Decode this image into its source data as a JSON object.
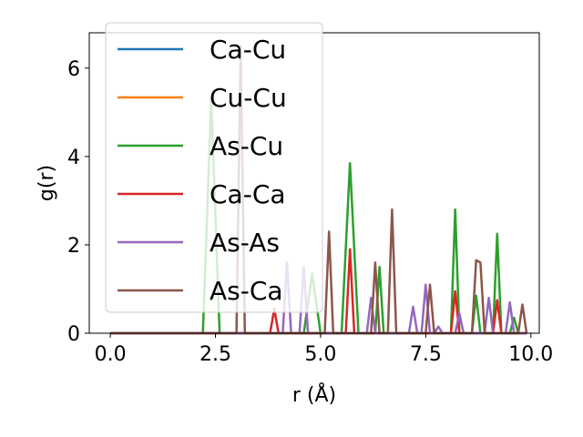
{
  "chart_data": {
    "type": "line",
    "xlabel": "r (Å)",
    "ylabel": "g(r)",
    "xlim": [
      -0.5,
      10.2
    ],
    "ylim": [
      0,
      6.8
    ],
    "x_ticks": [
      {
        "value": 0.0,
        "label": "0.0"
      },
      {
        "value": 2.5,
        "label": "2.5"
      },
      {
        "value": 5.0,
        "label": "5.0"
      },
      {
        "value": 7.5,
        "label": "7.5"
      },
      {
        "value": 10.0,
        "label": "10.0"
      }
    ],
    "y_ticks": [
      {
        "value": 0,
        "label": "0"
      },
      {
        "value": 2,
        "label": "2"
      },
      {
        "value": 4,
        "label": "4"
      },
      {
        "value": 6,
        "label": "6"
      }
    ],
    "grid": false,
    "legend_position": "top-left",
    "series": [
      {
        "name": "Ca-Cu",
        "color": "#1f77b4",
        "x": [
          0.0,
          9.9
        ],
        "y": [
          0,
          0
        ]
      },
      {
        "name": "Cu-Cu",
        "color": "#ff7f0e",
        "x": [
          0.0,
          9.9
        ],
        "y": [
          0,
          0
        ]
      },
      {
        "name": "As-Cu",
        "color": "#2ca02c",
        "x": [
          0.0,
          2.2,
          2.4,
          2.6,
          4.6,
          4.8,
          5.0,
          5.5,
          5.7,
          5.9,
          6.3,
          6.4,
          6.5,
          8.1,
          8.2,
          8.3,
          8.6,
          8.7,
          8.8,
          9.1,
          9.2,
          9.3,
          9.5,
          9.6,
          9.7,
          9.9
        ],
        "y": [
          0,
          0,
          5.3,
          0,
          0,
          1.35,
          0,
          0,
          3.85,
          0,
          0,
          1.5,
          0,
          0,
          2.8,
          0,
          0,
          0.85,
          0,
          0,
          2.25,
          0,
          0,
          0.35,
          0,
          0
        ]
      },
      {
        "name": "Ca-Ca",
        "color": "#d62728",
        "x": [
          0.0,
          3.8,
          3.9,
          4.0,
          5.6,
          5.7,
          5.8,
          8.1,
          8.2,
          8.3,
          9.1,
          9.2,
          9.3,
          9.9
        ],
        "y": [
          0,
          0,
          0.55,
          0,
          0,
          1.9,
          0,
          0,
          0.95,
          0,
          0,
          0.75,
          0,
          0
        ]
      },
      {
        "name": "As-As",
        "color": "#9467bd",
        "x": [
          0.0,
          4.1,
          4.2,
          4.3,
          4.5,
          4.6,
          4.7,
          6.1,
          6.2,
          6.3,
          7.1,
          7.2,
          7.3,
          7.4,
          7.5,
          7.6,
          7.7,
          7.8,
          7.9,
          8.2,
          8.3,
          8.4,
          8.9,
          9.0,
          9.1,
          9.4,
          9.5,
          9.6,
          9.9
        ],
        "y": [
          0,
          0,
          1.6,
          0,
          0,
          1.5,
          0,
          0,
          0.8,
          0,
          0,
          0.6,
          0,
          0,
          1.1,
          0,
          0,
          0.15,
          0,
          0,
          0.45,
          0,
          0,
          0.8,
          0,
          0,
          0.7,
          0,
          0
        ]
      },
      {
        "name": "As-Ca",
        "color": "#8c564b",
        "x": [
          0.0,
          3.0,
          3.1,
          3.2,
          5.1,
          5.2,
          5.3,
          6.2,
          6.3,
          6.4,
          6.6,
          6.7,
          6.8,
          7.5,
          7.6,
          7.7,
          8.6,
          8.7,
          8.8,
          8.9,
          9.0,
          9.7,
          9.8,
          9.9
        ],
        "y": [
          0,
          0,
          6.5,
          0,
          0,
          2.3,
          0,
          0,
          1.6,
          0,
          0,
          2.8,
          0,
          0,
          1.1,
          0,
          0,
          1.65,
          1.6,
          0,
          0,
          0,
          0.65,
          0
        ]
      }
    ]
  }
}
